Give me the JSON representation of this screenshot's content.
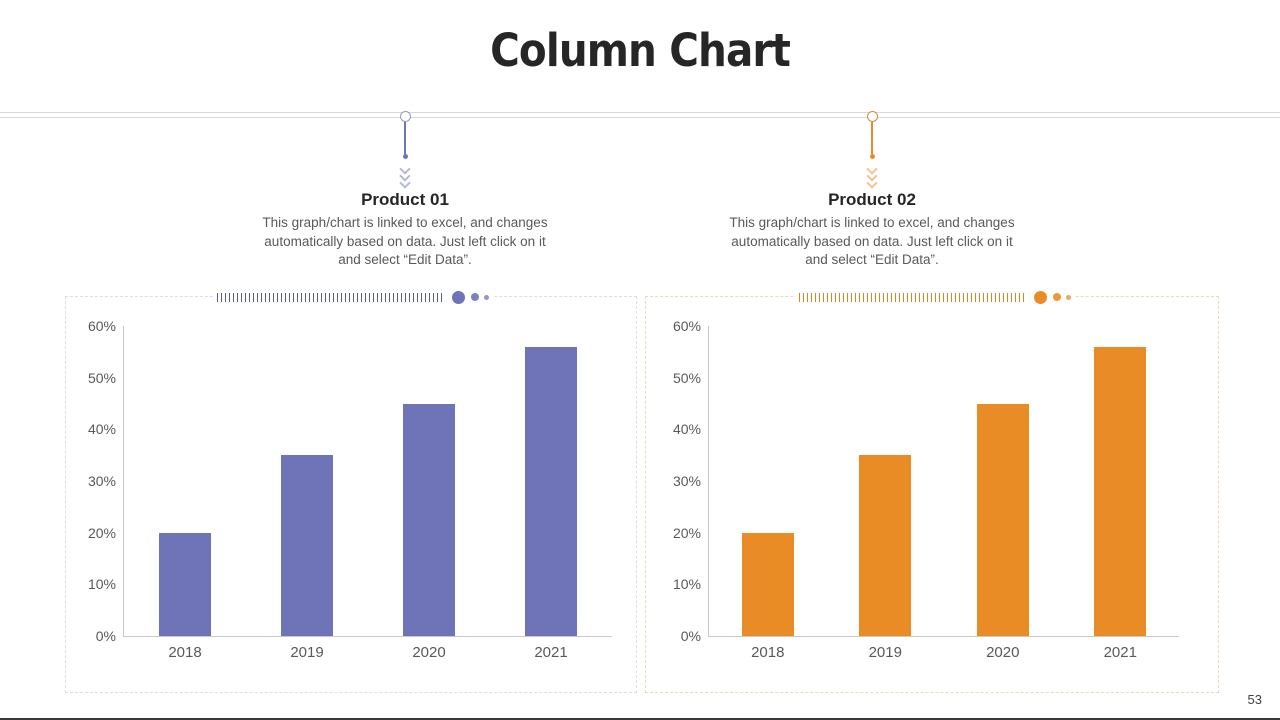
{
  "slide": {
    "title": "Column Chart",
    "page_number": "53"
  },
  "colors": {
    "product1_accent": "#6f74b8",
    "product2_accent": "#ea8c26",
    "axis_line": "#c9c9c9",
    "label_text": "#595959",
    "heading_text": "#262626"
  },
  "products": [
    {
      "name": "Product 01",
      "description": "This graph/chart is linked to excel, and changes automatically based on data. Just left click on it and select “Edit Data”."
    },
    {
      "name": "Product 02",
      "description": "This graph/chart is linked to excel, and changes automatically based on data. Just left click on it and select “Edit Data”."
    }
  ],
  "chart_data": [
    {
      "type": "bar",
      "title": "Product 01",
      "categories": [
        "2018",
        "2019",
        "2020",
        "2021"
      ],
      "values": [
        20,
        35,
        45,
        56
      ],
      "value_unit": "%",
      "xlabel": "",
      "ylabel": "",
      "ylim": [
        0,
        60
      ],
      "ytick_step": 10,
      "ytick_labels": [
        "0%",
        "10%",
        "20%",
        "30%",
        "40%",
        "50%",
        "60%"
      ],
      "bar_color": "#6f74b8",
      "grid": false,
      "legend_position": "none"
    },
    {
      "type": "bar",
      "title": "Product 02",
      "categories": [
        "2018",
        "2019",
        "2020",
        "2021"
      ],
      "values": [
        20,
        35,
        45,
        56
      ],
      "value_unit": "%",
      "xlabel": "",
      "ylabel": "",
      "ylim": [
        0,
        60
      ],
      "ytick_step": 10,
      "ytick_labels": [
        "0%",
        "10%",
        "20%",
        "30%",
        "40%",
        "50%",
        "60%"
      ],
      "bar_color": "#ea8c26",
      "grid": false,
      "legend_position": "none"
    }
  ]
}
